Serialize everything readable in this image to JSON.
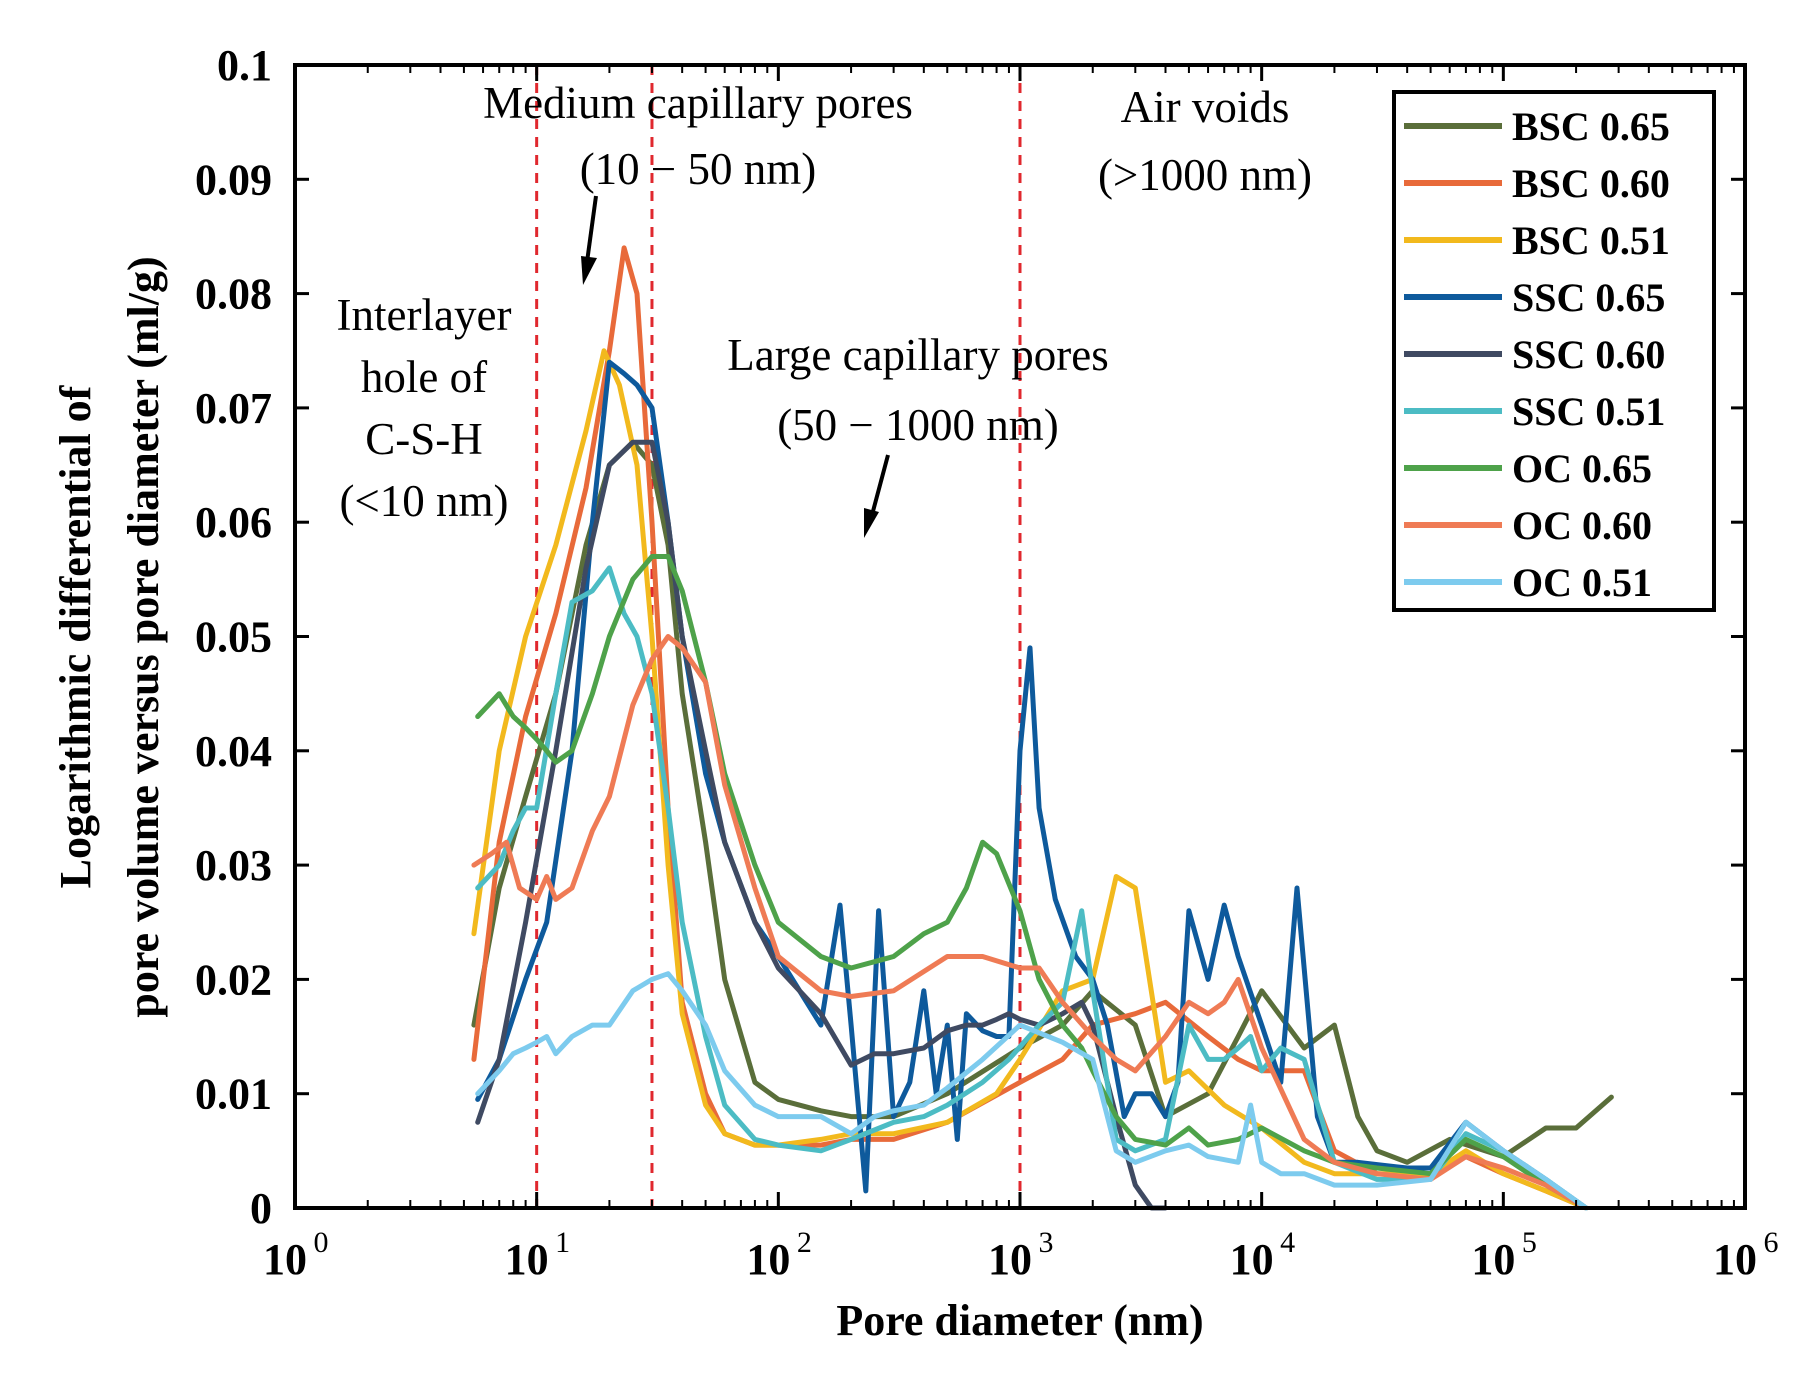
{
  "chart_data": {
    "type": "line",
    "title": "",
    "xlabel": "Pore diameter (nm)",
    "ylabel_line1": "Logarithmic differential of",
    "ylabel_line2": "pore volume versus pore diameter (ml/g)",
    "xscale": "log",
    "xlim": [
      1,
      1000000
    ],
    "ylim": [
      0,
      0.1
    ],
    "grid": false,
    "legend_position": "top-right",
    "x_tick_bases": [
      "10",
      "10",
      "10",
      "10",
      "10",
      "10",
      "10"
    ],
    "x_tick_exponents": [
      "0",
      "1",
      "2",
      "3",
      "4",
      "5",
      "6"
    ],
    "y_ticks": [
      "0",
      "0.01",
      "0.02",
      "0.03",
      "0.04",
      "0.05",
      "0.06",
      "0.07",
      "0.08",
      "0.09",
      "0.1"
    ],
    "y_tick_values": [
      0,
      0.01,
      0.02,
      0.03,
      0.04,
      0.05,
      0.06,
      0.07,
      0.08,
      0.09,
      0.1
    ],
    "reference_lines_x": [
      10,
      30,
      1000
    ],
    "annotations": [
      {
        "name": "interlayer",
        "lines": [
          "Interlayer",
          "hole of",
          "C-S-H",
          "(<10 nm)"
        ]
      },
      {
        "name": "medium",
        "lines": [
          "Medium capillary pores",
          "(10 − 50 nm)"
        ]
      },
      {
        "name": "large",
        "lines": [
          "Large capillary pores",
          "(50 − 1000 nm)"
        ]
      },
      {
        "name": "air",
        "lines": [
          "Air voids",
          "(>1000 nm)"
        ]
      }
    ],
    "series": [
      {
        "name": "BSC 0.65",
        "color": "#5a6e3a",
        "x": [
          5.5,
          7,
          9,
          12,
          16,
          20,
          25,
          30,
          35,
          40,
          50,
          60,
          80,
          100,
          150,
          200,
          300,
          500,
          1000,
          1500,
          2000,
          3000,
          4000,
          6000,
          8000,
          10000,
          15000,
          20000,
          25000,
          30000,
          40000,
          60000,
          100000,
          150000,
          200000,
          280000
        ],
        "y": [
          0.016,
          0.028,
          0.036,
          0.045,
          0.058,
          0.065,
          0.067,
          0.065,
          0.058,
          0.045,
          0.032,
          0.02,
          0.011,
          0.0095,
          0.0085,
          0.008,
          0.008,
          0.01,
          0.014,
          0.016,
          0.019,
          0.016,
          0.008,
          0.01,
          0.015,
          0.019,
          0.014,
          0.016,
          0.008,
          0.005,
          0.004,
          0.006,
          0.0045,
          0.007,
          0.007,
          0.0097
        ]
      },
      {
        "name": "BSC 0.60",
        "color": "#e86a3a",
        "x": [
          5.5,
          7,
          9,
          12,
          16,
          20,
          23,
          26,
          30,
          35,
          40,
          50,
          60,
          80,
          100,
          150,
          200,
          300,
          500,
          1000,
          1500,
          2000,
          3000,
          4000,
          6000,
          8000,
          10000,
          15000,
          20000,
          30000,
          50000,
          70000,
          100000,
          150000,
          220000
        ],
        "y": [
          0.013,
          0.032,
          0.043,
          0.052,
          0.063,
          0.075,
          0.084,
          0.08,
          0.06,
          0.035,
          0.018,
          0.01,
          0.0065,
          0.0055,
          0.0055,
          0.0055,
          0.006,
          0.006,
          0.0075,
          0.011,
          0.013,
          0.016,
          0.017,
          0.018,
          0.015,
          0.013,
          0.012,
          0.012,
          0.005,
          0.003,
          0.0028,
          0.0045,
          0.003,
          0.0015,
          0
        ]
      },
      {
        "name": "BSC 0.51",
        "color": "#f2b91d",
        "x": [
          5.5,
          7,
          9,
          12,
          16,
          19,
          22,
          26,
          30,
          35,
          40,
          50,
          60,
          80,
          100,
          150,
          200,
          300,
          500,
          800,
          1000,
          1500,
          2000,
          2500,
          3000,
          4000,
          5000,
          7000,
          10000,
          15000,
          20000,
          30000,
          50000,
          70000,
          100000,
          150000,
          220000
        ],
        "y": [
          0.024,
          0.04,
          0.05,
          0.058,
          0.068,
          0.075,
          0.072,
          0.065,
          0.05,
          0.03,
          0.017,
          0.009,
          0.0065,
          0.0055,
          0.0055,
          0.006,
          0.0065,
          0.0065,
          0.0075,
          0.01,
          0.013,
          0.019,
          0.02,
          0.029,
          0.028,
          0.011,
          0.012,
          0.009,
          0.007,
          0.004,
          0.003,
          0.003,
          0.003,
          0.005,
          0.003,
          0.0015,
          0
        ]
      },
      {
        "name": "SSC 0.65",
        "color": "#0e5a9c",
        "x": [
          5.7,
          7,
          9,
          11,
          14,
          17,
          20,
          23,
          26,
          30,
          35,
          40,
          50,
          60,
          80,
          100,
          150,
          180,
          200,
          230,
          260,
          300,
          350,
          400,
          450,
          500,
          550,
          600,
          700,
          800,
          900,
          1000,
          1100,
          1200,
          1400,
          1700,
          2000,
          2300,
          2700,
          3000,
          3500,
          4000,
          4500,
          5000,
          6000,
          7000,
          8000,
          10000,
          12000,
          14000,
          17000,
          20000,
          25000,
          30000,
          40000,
          50000,
          70000,
          100000,
          150000,
          220000
        ],
        "y": [
          0.0095,
          0.013,
          0.02,
          0.025,
          0.04,
          0.06,
          0.074,
          0.073,
          0.072,
          0.07,
          0.06,
          0.05,
          0.038,
          0.032,
          0.025,
          0.022,
          0.016,
          0.0265,
          0.016,
          0.0015,
          0.026,
          0.008,
          0.011,
          0.019,
          0.01,
          0.016,
          0.006,
          0.017,
          0.0155,
          0.015,
          0.015,
          0.04,
          0.049,
          0.035,
          0.027,
          0.022,
          0.02,
          0.016,
          0.008,
          0.01,
          0.01,
          0.008,
          0.011,
          0.026,
          0.02,
          0.0265,
          0.022,
          0.016,
          0.011,
          0.028,
          0.008,
          0.004,
          0.004,
          0.0038,
          0.0035,
          0.0035,
          0.0075,
          0.005,
          0.0025,
          0
        ]
      },
      {
        "name": "SSC 0.60",
        "color": "#3f4a62",
        "x": [
          5.7,
          7,
          9,
          12,
          16,
          20,
          25,
          30,
          35,
          40,
          50,
          60,
          80,
          100,
          150,
          200,
          250,
          300,
          400,
          500,
          600,
          700,
          800,
          900,
          1000,
          1200,
          1500,
          1800,
          2000,
          2500,
          3000,
          3500,
          4000
        ],
        "y": [
          0.0075,
          0.013,
          0.025,
          0.04,
          0.056,
          0.065,
          0.067,
          0.067,
          0.06,
          0.05,
          0.04,
          0.032,
          0.025,
          0.021,
          0.017,
          0.0125,
          0.0135,
          0.0135,
          0.014,
          0.0155,
          0.016,
          0.016,
          0.0165,
          0.017,
          0.0165,
          0.016,
          0.017,
          0.018,
          0.016,
          0.008,
          0.002,
          0,
          0
        ]
      },
      {
        "name": "SSC 0.51",
        "color": "#4cbcc4",
        "x": [
          5.7,
          7,
          8,
          9,
          10,
          12,
          14,
          17,
          20,
          23,
          26,
          30,
          35,
          40,
          50,
          60,
          80,
          100,
          150,
          200,
          300,
          400,
          500,
          700,
          900,
          1200,
          1500,
          1800,
          2000,
          2500,
          3000,
          4000,
          5000,
          6000,
          7000,
          8000,
          9000,
          10000,
          12000,
          15000,
          20000,
          30000,
          50000,
          70000,
          100000,
          150000,
          220000
        ],
        "y": [
          0.028,
          0.03,
          0.033,
          0.035,
          0.035,
          0.045,
          0.053,
          0.054,
          0.056,
          0.052,
          0.05,
          0.045,
          0.035,
          0.025,
          0.015,
          0.009,
          0.006,
          0.0055,
          0.005,
          0.006,
          0.0075,
          0.008,
          0.009,
          0.011,
          0.013,
          0.016,
          0.018,
          0.026,
          0.019,
          0.006,
          0.005,
          0.006,
          0.016,
          0.013,
          0.013,
          0.014,
          0.015,
          0.012,
          0.014,
          0.013,
          0.004,
          0.0025,
          0.0025,
          0.0065,
          0.005,
          0.0025,
          0
        ]
      },
      {
        "name": "OC 0.65",
        "color": "#4ea24a",
        "x": [
          5.7,
          7,
          8,
          9,
          10,
          11,
          12,
          14,
          17,
          20,
          25,
          30,
          35,
          40,
          50,
          60,
          80,
          100,
          150,
          200,
          300,
          400,
          500,
          600,
          700,
          800,
          1000,
          1200,
          1500,
          1800,
          2000,
          2500,
          3000,
          4000,
          5000,
          6000,
          8000,
          10000,
          15000,
          20000,
          30000,
          50000,
          70000,
          100000,
          150000,
          220000
        ],
        "y": [
          0.043,
          0.045,
          0.043,
          0.042,
          0.041,
          0.04,
          0.039,
          0.04,
          0.045,
          0.05,
          0.055,
          0.057,
          0.057,
          0.054,
          0.046,
          0.038,
          0.03,
          0.025,
          0.022,
          0.021,
          0.022,
          0.024,
          0.025,
          0.028,
          0.032,
          0.031,
          0.026,
          0.02,
          0.016,
          0.014,
          0.012,
          0.008,
          0.006,
          0.0055,
          0.007,
          0.0055,
          0.006,
          0.007,
          0.005,
          0.004,
          0.0035,
          0.003,
          0.006,
          0.0045,
          0.002,
          0
        ]
      },
      {
        "name": "OC 0.60",
        "color": "#ef7b55",
        "x": [
          5.5,
          6.5,
          7.5,
          8.5,
          10,
          11,
          12,
          14,
          17,
          20,
          25,
          30,
          35,
          40,
          50,
          60,
          80,
          100,
          150,
          200,
          300,
          500,
          700,
          1000,
          1200,
          1500,
          2000,
          2500,
          3000,
          4000,
          5000,
          6000,
          7000,
          8000,
          10000,
          15000,
          20000,
          30000,
          50000,
          70000,
          100000,
          150000,
          220000
        ],
        "y": [
          0.03,
          0.031,
          0.032,
          0.028,
          0.027,
          0.029,
          0.027,
          0.028,
          0.033,
          0.036,
          0.044,
          0.048,
          0.05,
          0.049,
          0.046,
          0.037,
          0.028,
          0.022,
          0.019,
          0.0185,
          0.019,
          0.022,
          0.022,
          0.021,
          0.021,
          0.018,
          0.015,
          0.013,
          0.012,
          0.015,
          0.018,
          0.017,
          0.018,
          0.02,
          0.014,
          0.006,
          0.004,
          0.003,
          0.0025,
          0.0045,
          0.0035,
          0.002,
          0
        ]
      },
      {
        "name": "OC 0.51",
        "color": "#7dcbee",
        "x": [
          5.7,
          7,
          8,
          9,
          10,
          11,
          12,
          14,
          17,
          20,
          25,
          30,
          35,
          40,
          50,
          60,
          80,
          100,
          150,
          200,
          250,
          300,
          400,
          500,
          700,
          1000,
          1500,
          2000,
          2500,
          3000,
          4000,
          5000,
          6000,
          8000,
          9000,
          10000,
          12000,
          15000,
          20000,
          30000,
          50000,
          70000,
          100000,
          150000,
          220000
        ],
        "y": [
          0.01,
          0.012,
          0.0135,
          0.014,
          0.0145,
          0.015,
          0.0135,
          0.015,
          0.016,
          0.016,
          0.019,
          0.02,
          0.0205,
          0.019,
          0.016,
          0.012,
          0.009,
          0.008,
          0.008,
          0.0065,
          0.008,
          0.0085,
          0.009,
          0.0105,
          0.013,
          0.016,
          0.0145,
          0.013,
          0.005,
          0.004,
          0.005,
          0.0055,
          0.0045,
          0.004,
          0.009,
          0.004,
          0.003,
          0.003,
          0.002,
          0.002,
          0.0025,
          0.0075,
          0.005,
          0.0025,
          0
        ]
      }
    ]
  }
}
